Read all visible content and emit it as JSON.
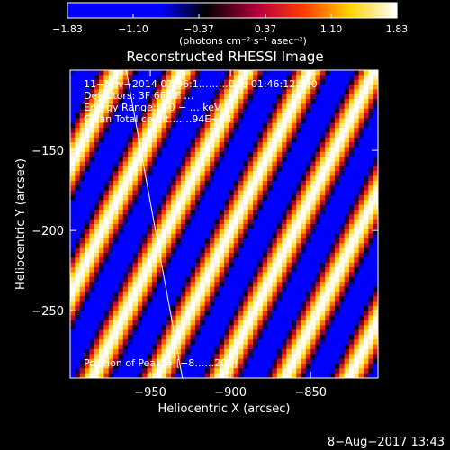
{
  "chart_data": {
    "type": "heatmap",
    "title": "Reconstructed RHESSI Image",
    "xlabel": "Heliocentric X (arcsec)",
    "ylabel": "Heliocentric Y (arcsec)",
    "xlim": [
      -1000,
      -808
    ],
    "ylim": [
      -292,
      -100
    ],
    "x_ticks": [
      {
        "value": -950,
        "label": "−950"
      },
      {
        "value": -900,
        "label": "−900"
      },
      {
        "value": -850,
        "label": "−850"
      }
    ],
    "y_ticks": [
      {
        "value": -150,
        "label": "−150"
      },
      {
        "value": -200,
        "label": "−200"
      },
      {
        "value": -250,
        "label": "−250"
      }
    ],
    "colorbar": {
      "range": [
        -1.83,
        1.83
      ],
      "tick_values": [
        -1.83,
        -1.1,
        -0.37,
        0.37,
        1.1,
        1.83
      ],
      "tick_labels": [
        "−1.83",
        "−1.10",
        "−0.37",
        "0.37",
        "1.10",
        "1.83"
      ],
      "unit_label": "(photons cm⁻² s⁻¹ asec⁻²)"
    },
    "annotations": [
      "11−Nov−2014 01:36:1………0 to 01:46:12.000",
      "Detectors: 3F 6F 9F …",
      "Energy Range: 3.0 − … keV",
      "Clean    Total count…….94E+04"
    ],
    "peak_label": "Position of Peak = [−8……209]",
    "limb_line": {
      "x": [
        -965,
        -930
      ],
      "y": [
        -100,
        -292
      ]
    },
    "fringe_pattern": {
      "amplitude": 1.83,
      "period_x": 40,
      "slope": 2.0
    },
    "colors": {
      "background": "#000000",
      "foreground": "#ffffff"
    }
  },
  "timestamp": "8−Aug−2017 13:43"
}
